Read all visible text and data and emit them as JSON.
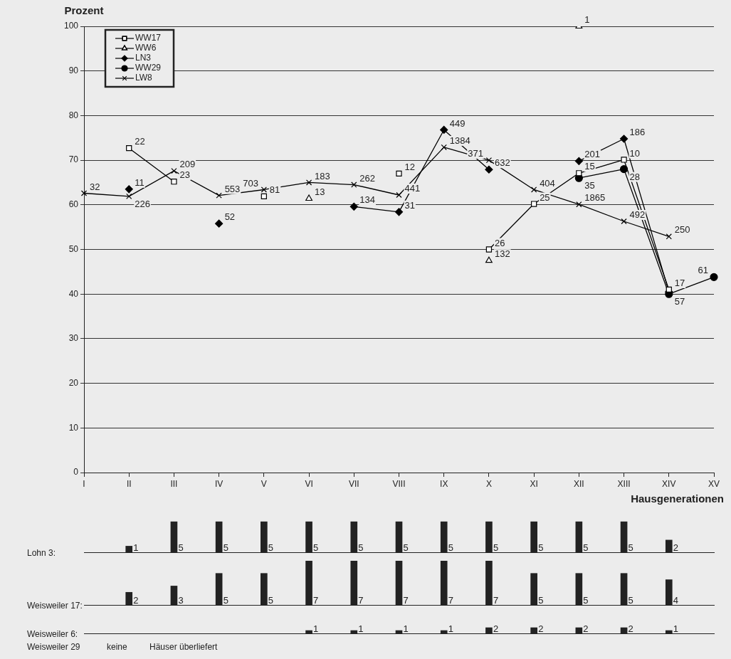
{
  "chart_data": [
    {
      "type": "line",
      "ylabel": "Prozent",
      "xlabel": "Hausgenerationen",
      "categories": [
        "I",
        "II",
        "III",
        "IV",
        "V",
        "VI",
        "VII",
        "VIII",
        "IX",
        "X",
        "XI",
        "XII",
        "XIII",
        "XIV",
        "XV"
      ],
      "ylim": [
        0,
        100
      ],
      "yticks": [
        0,
        10,
        20,
        30,
        40,
        50,
        60,
        70,
        80,
        90,
        100
      ],
      "grid": "y",
      "legend": "top left",
      "series": [
        {
          "name": "WW17",
          "color": "#000000",
          "marker": "square",
          "values": [
            null,
            72.7,
            65.2,
            null,
            61.9,
            null,
            null,
            67.0,
            null,
            50,
            60.2,
            67.1,
            70.1,
            41,
            null
          ]
        },
        {
          "name": "WW6",
          "color": "#000000",
          "marker": "triangle",
          "values": [
            null,
            null,
            null,
            null,
            null,
            61.4,
            null,
            null,
            null,
            47.5,
            null,
            100,
            null,
            null,
            null
          ]
        },
        {
          "name": "LN3",
          "color": "#000000",
          "marker": "diamond",
          "values": [
            null,
            63.5,
            null,
            55.8,
            null,
            null,
            59.6,
            58.4,
            76.8,
            67.9,
            null,
            69.8,
            74.8,
            40.5,
            null
          ]
        },
        {
          "name": "WW29",
          "color": "#000000",
          "marker": "circle",
          "values": [
            null,
            null,
            null,
            null,
            null,
            null,
            null,
            null,
            null,
            null,
            null,
            66.0,
            68.0,
            40,
            43.8
          ]
        },
        {
          "name": "LW8",
          "color": "#000000",
          "marker": "cross",
          "values": [
            62.6,
            61.9,
            67.6,
            62.1,
            63.4,
            65.0,
            64.5,
            62.2,
            72.9,
            70,
            63.4,
            60.1,
            56.3,
            52.9,
            null
          ]
        }
      ],
      "annotations": [
        {
          "text": "22",
          "x": "II",
          "y": 72.7
        },
        {
          "text": "23",
          "x": "III",
          "y": 65.2
        },
        {
          "text": "81",
          "x": "V",
          "y": 61.9
        },
        {
          "text": "12",
          "x": "VIII",
          "y": 67.0
        },
        {
          "text": "26",
          "x": "X",
          "y": 50
        },
        {
          "text": "25",
          "x": "XI",
          "y": 60.2
        },
        {
          "text": "15",
          "x": "XII",
          "y": 67.1
        },
        {
          "text": "10",
          "x": "XIII",
          "y": 70.1
        },
        {
          "text": "17",
          "x": "XIV",
          "y": 41
        },
        {
          "text": "13",
          "x": "VI",
          "y": 61.4
        },
        {
          "text": "132",
          "x": "X",
          "y": 47.5
        },
        {
          "text": "1",
          "x": "XII",
          "y": 100
        },
        {
          "text": "11",
          "x": "II",
          "y": 63.5
        },
        {
          "text": "52",
          "x": "IV",
          "y": 55.8
        },
        {
          "text": "134",
          "x": "VII",
          "y": 59.6
        },
        {
          "text": "31",
          "x": "VIII",
          "y": 58.4
        },
        {
          "text": "449",
          "x": "IX",
          "y": 76.8
        },
        {
          "text": "632",
          "x": "X",
          "y": 67.9
        },
        {
          "text": "201",
          "x": "XII",
          "y": 69.8
        },
        {
          "text": "186",
          "x": "XIII",
          "y": 74.8
        },
        {
          "text": "35",
          "x": "XII",
          "y": 66.0
        },
        {
          "text": "28",
          "x": "XIII",
          "y": 68.0
        },
        {
          "text": "57",
          "x": "XIV",
          "y": 40
        },
        {
          "text": "61",
          "x": "XV",
          "y": 43.8
        },
        {
          "text": "32",
          "x": "I",
          "y": 62.6
        },
        {
          "text": "226",
          "x": "II",
          "y": 61.9
        },
        {
          "text": "209",
          "x": "III",
          "y": 67.6
        },
        {
          "text": "553",
          "x": "IV",
          "y": 62.1
        },
        {
          "text": "703",
          "x": "V",
          "y": 63.4
        },
        {
          "text": "183",
          "x": "VI",
          "y": 65.0
        },
        {
          "text": "262",
          "x": "VII",
          "y": 64.5
        },
        {
          "text": "441",
          "x": "VIII",
          "y": 62.2
        },
        {
          "text": "1384",
          "x": "IX",
          "y": 72.9
        },
        {
          "text": "371",
          "x": "X",
          "y": 70
        },
        {
          "text": "404",
          "x": "XI",
          "y": 63.4
        },
        {
          "text": "1865",
          "x": "XII",
          "y": 60.1
        },
        {
          "text": "492",
          "x": "XIII",
          "y": 56.3
        },
        {
          "text": "250",
          "x": "XIV",
          "y": 52.9
        }
      ]
    },
    {
      "type": "bar",
      "title": "Lohn 3:",
      "categories": [
        null,
        null,
        null,
        null,
        null,
        null,
        null,
        null,
        null,
        null,
        null,
        null,
        null,
        null,
        null
      ],
      "color": "#222222",
      "data_labels": true,
      "values": [
        null,
        1,
        5,
        5,
        5,
        5,
        5,
        5,
        5,
        5,
        5,
        5,
        5,
        2,
        null
      ]
    },
    {
      "type": "bar",
      "title": "Weisweiler 17:",
      "categories": [
        null,
        null,
        null,
        null,
        null,
        null,
        null,
        null,
        null,
        null,
        null,
        null,
        null,
        null,
        null
      ],
      "color": "#222222",
      "data_labels": true,
      "values": [
        null,
        2,
        3,
        5,
        5,
        7,
        7,
        7,
        7,
        7,
        5,
        5,
        5,
        4,
        null
      ]
    },
    {
      "type": "bar",
      "title": "Weisweiler 6:",
      "categories": [
        null,
        null,
        null,
        null,
        null,
        null,
        null,
        null,
        null,
        null,
        null,
        null,
        null,
        null,
        null
      ],
      "color": "#222222",
      "data_labels": true,
      "values": [
        null,
        null,
        null,
        null,
        null,
        1,
        1,
        1,
        1,
        2,
        2,
        2,
        2,
        1,
        null
      ]
    },
    {
      "type": "other",
      "title": "Weisweiler 29",
      "annotations": [
        "keine",
        "Häuser überliefert"
      ]
    }
  ]
}
